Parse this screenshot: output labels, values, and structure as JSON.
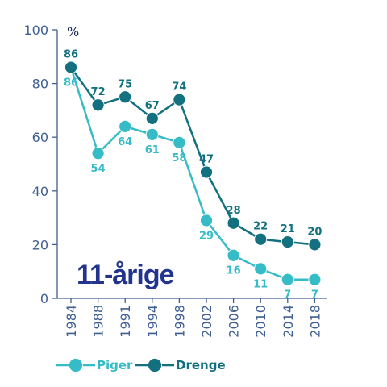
{
  "chart_data": {
    "type": "line",
    "title": "",
    "overlay_label": "11-årige",
    "unit_label": "%",
    "xlabel": "",
    "ylabel": "",
    "ylim": [
      0,
      100
    ],
    "yticks": [
      0,
      20,
      40,
      60,
      80,
      100
    ],
    "categories": [
      "1984",
      "1988",
      "1991",
      "1994",
      "1998",
      "2002",
      "2006",
      "2010",
      "2014",
      "2018"
    ],
    "series": [
      {
        "name": "Piger",
        "color": "#36bcc6",
        "values": [
          86,
          54,
          64,
          61,
          58,
          29,
          16,
          11,
          7,
          7
        ]
      },
      {
        "name": "Drenge",
        "color": "#13707f",
        "values": [
          86,
          72,
          75,
          67,
          74,
          47,
          28,
          22,
          21,
          20
        ]
      }
    ],
    "legend": {
      "placement": "bottom-left"
    },
    "grid": false
  }
}
